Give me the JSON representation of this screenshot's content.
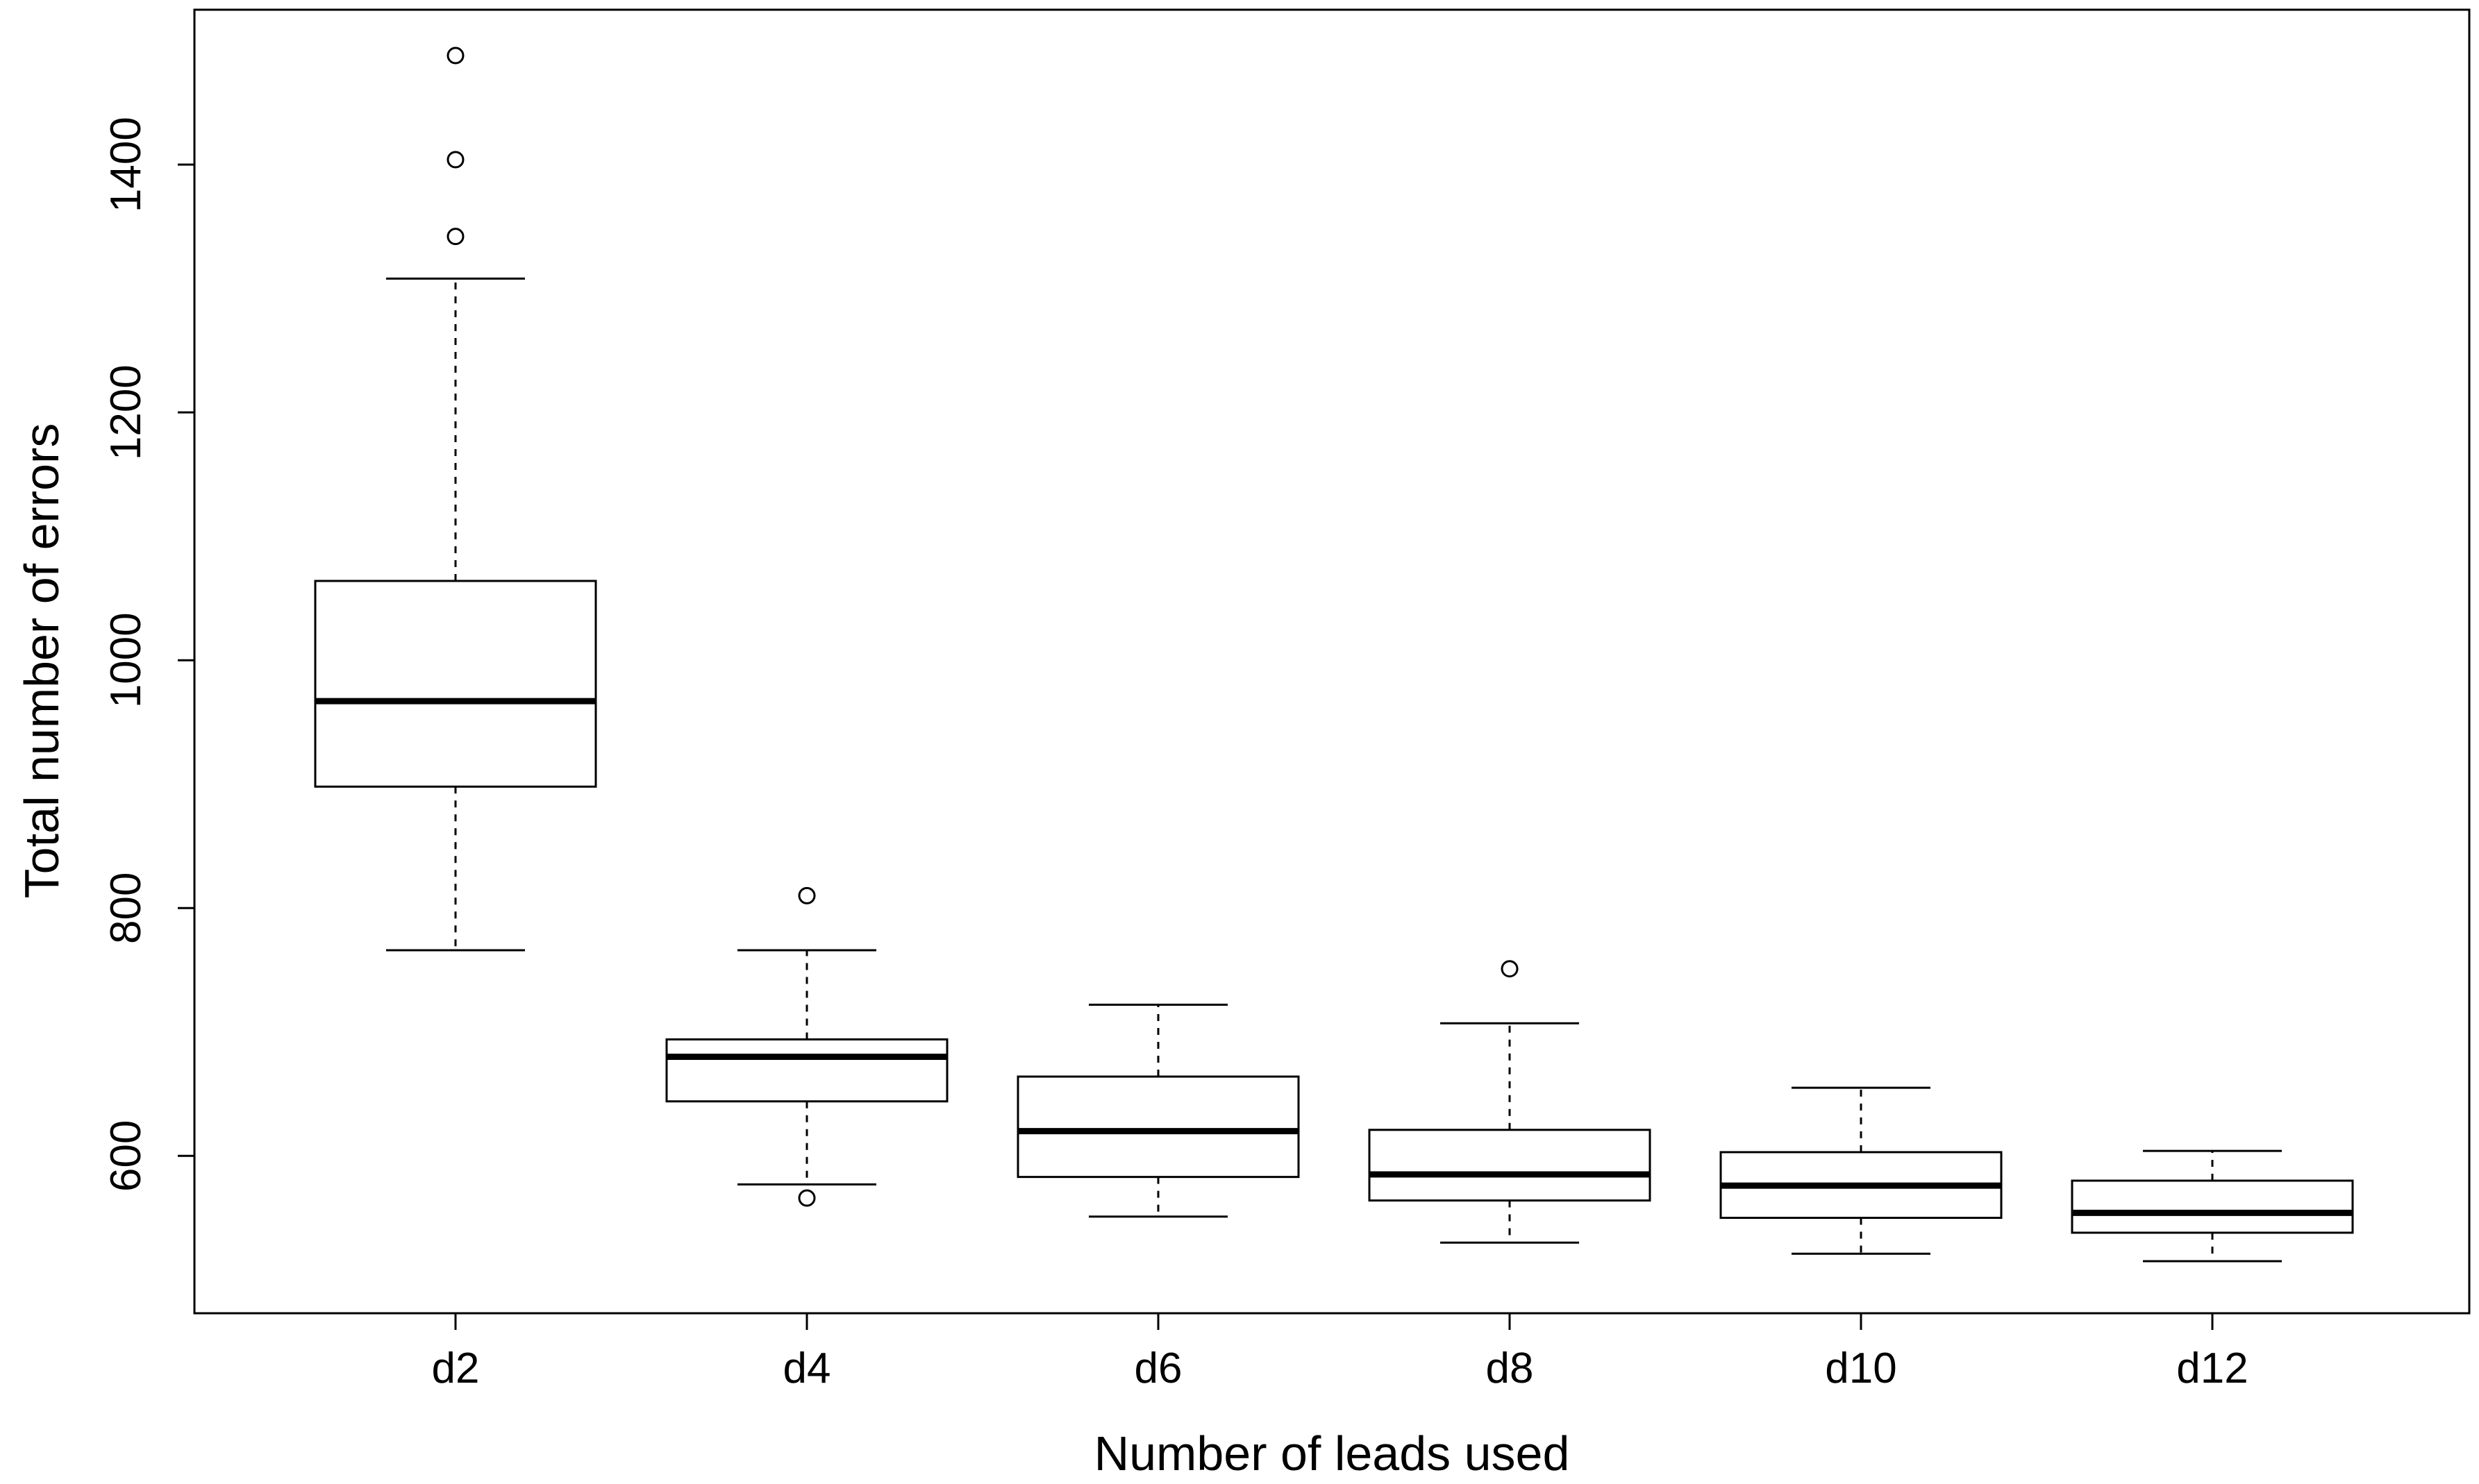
{
  "chart_data": {
    "type": "boxplot",
    "title": "",
    "xlabel": "Number of leads used",
    "ylabel": "Total number of errors",
    "ylim": [
      473,
      1525
    ],
    "yticks": [
      600,
      800,
      1000,
      1200,
      1400
    ],
    "yticks_labels": [
      "600",
      "800",
      "1000",
      "1200",
      "1400"
    ],
    "categories": [
      "d2",
      "d4",
      "d6",
      "d8",
      "d10",
      "d12"
    ],
    "boxes": [
      {
        "label": "d2",
        "whisker_low": 766,
        "q1": 898,
        "median": 967,
        "q3": 1064,
        "whisker_high": 1308,
        "outliers": [
          1342,
          1404,
          1488
        ]
      },
      {
        "label": "d4",
        "whisker_low": 577,
        "q1": 644,
        "median": 680,
        "q3": 694,
        "whisker_high": 766,
        "outliers": [
          566,
          810
        ]
      },
      {
        "label": "d6",
        "whisker_low": 551,
        "q1": 583,
        "median": 620,
        "q3": 664,
        "whisker_high": 722,
        "outliers": []
      },
      {
        "label": "d8",
        "whisker_low": 530,
        "q1": 564,
        "median": 585,
        "q3": 621,
        "whisker_high": 707,
        "outliers": [
          751
        ]
      },
      {
        "label": "d10",
        "whisker_low": 521,
        "q1": 550,
        "median": 576,
        "q3": 603,
        "whisker_high": 655,
        "outliers": []
      },
      {
        "label": "d12",
        "whisker_low": 515,
        "q1": 538,
        "median": 554,
        "q3": 580,
        "whisker_high": 604,
        "outliers": []
      }
    ]
  }
}
